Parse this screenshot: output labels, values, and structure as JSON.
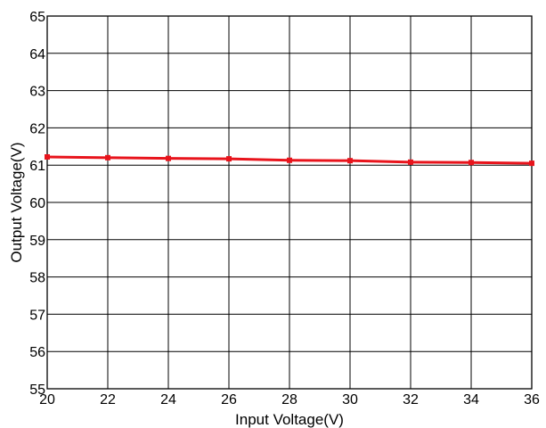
{
  "chart_data": {
    "type": "line",
    "title": "",
    "xlabel": "Input Voltage(V)",
    "ylabel": "Output Voltage(V)",
    "xlim": [
      20,
      36
    ],
    "ylim": [
      55,
      65
    ],
    "x_ticks": [
      20,
      22,
      24,
      26,
      28,
      30,
      32,
      34,
      36
    ],
    "y_ticks": [
      55,
      56,
      57,
      58,
      59,
      60,
      61,
      62,
      63,
      64,
      65
    ],
    "grid": true,
    "legend": "none",
    "series": [
      {
        "color": "#e8141c",
        "marker": "square",
        "x": [
          20,
          22,
          24,
          26,
          28,
          30,
          32,
          34,
          36
        ],
        "y": [
          61.22,
          61.2,
          61.18,
          61.17,
          61.13,
          61.12,
          61.08,
          61.07,
          61.05
        ]
      }
    ]
  }
}
